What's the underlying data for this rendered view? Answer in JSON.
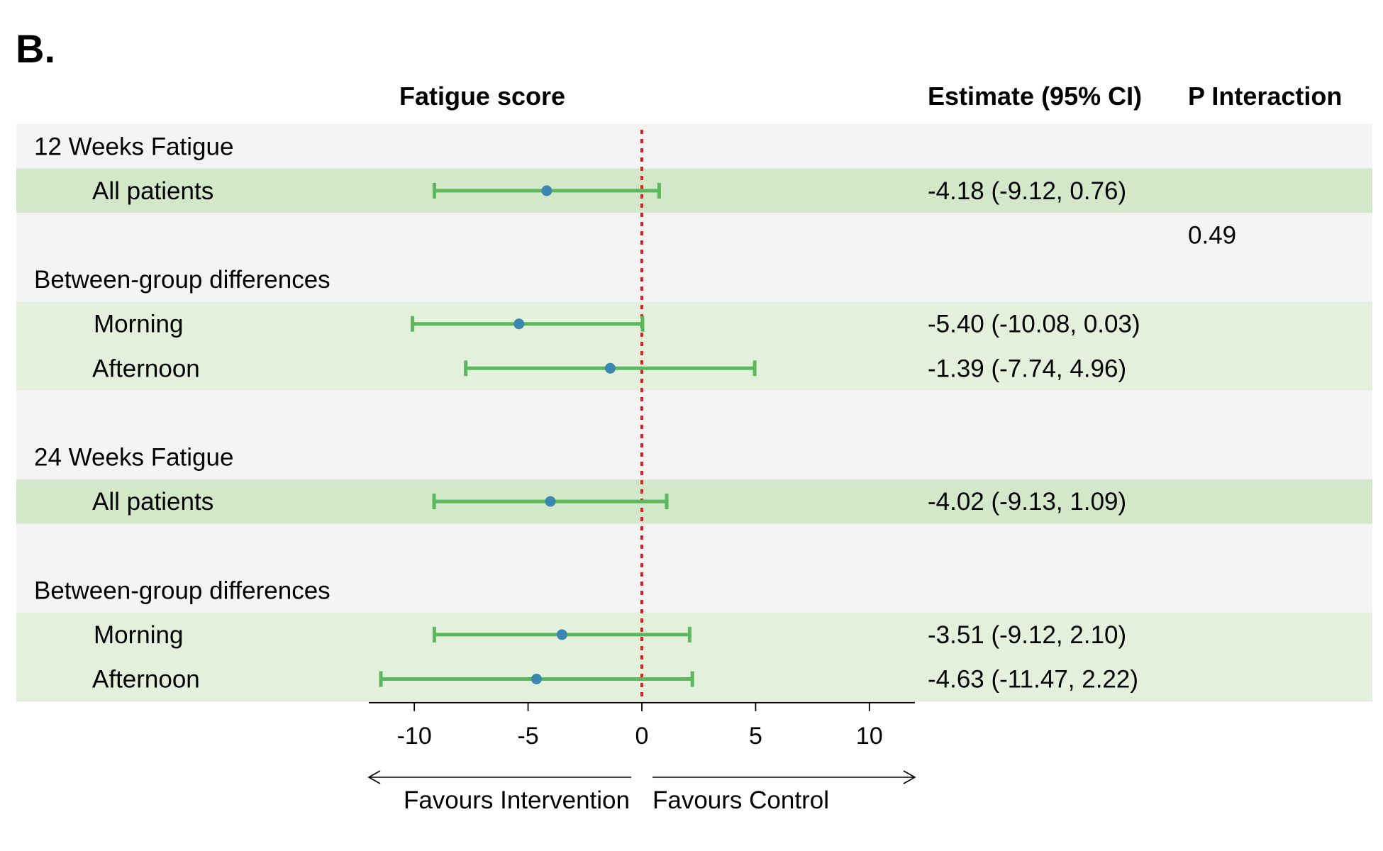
{
  "panel_label": "B.",
  "headers": {
    "plot": "Fatigue score",
    "estimate": "Estimate (95% CI)",
    "p_interaction": "P Interaction"
  },
  "colors": {
    "band_light": "#f4f4f4",
    "band_green": "#d3e7c9",
    "band_green_light": "#e2f0dc",
    "ci_line": "#5cb85c",
    "point": "#3a87b0",
    "reference_line": "#dd2222"
  },
  "favours": {
    "left": "Favours Intervention",
    "right": "Favours Control"
  },
  "chart_data": {
    "type": "forest",
    "xlabel": "",
    "xlim": [
      -12,
      12
    ],
    "xticks": [
      -10,
      -5,
      0,
      5,
      10
    ],
    "reference_line": 0,
    "rows": [
      {
        "label": "12 Weeks Fatigue",
        "kind": "section",
        "band": "light",
        "estimate": null,
        "lower": null,
        "upper": null,
        "ci_text": "",
        "p": ""
      },
      {
        "label": "All patients",
        "kind": "item",
        "band": "green",
        "estimate": -4.18,
        "lower": -9.12,
        "upper": 0.76,
        "ci_text": "-4.18 (-9.12, 0.76)",
        "p": ""
      },
      {
        "label": "",
        "kind": "blank",
        "band": "light",
        "estimate": null,
        "lower": null,
        "upper": null,
        "ci_text": "",
        "p": "0.49"
      },
      {
        "label": "Between-group differences",
        "kind": "section",
        "band": "light",
        "estimate": null,
        "lower": null,
        "upper": null,
        "ci_text": "",
        "p": ""
      },
      {
        "label": "Morning",
        "kind": "item",
        "band": "green_light",
        "estimate": -5.4,
        "lower": -10.08,
        "upper": 0.03,
        "ci_text": "-5.40 (-10.08, 0.03)",
        "p": ""
      },
      {
        "label": "Afternoon",
        "kind": "item",
        "band": "green_light",
        "estimate": -1.39,
        "lower": -7.74,
        "upper": 4.96,
        "ci_text": "-1.39 (-7.74, 4.96)",
        "p": ""
      },
      {
        "label": "",
        "kind": "blank",
        "band": "light",
        "estimate": null,
        "lower": null,
        "upper": null,
        "ci_text": "",
        "p": ""
      },
      {
        "label": "24 Weeks Fatigue",
        "kind": "section",
        "band": "light",
        "estimate": null,
        "lower": null,
        "upper": null,
        "ci_text": "",
        "p": ""
      },
      {
        "label": "All patients",
        "kind": "item",
        "band": "green",
        "estimate": -4.02,
        "lower": -9.13,
        "upper": 1.09,
        "ci_text": "-4.02 (-9.13, 1.09)",
        "p": ""
      },
      {
        "label": "",
        "kind": "blank",
        "band": "light",
        "estimate": null,
        "lower": null,
        "upper": null,
        "ci_text": "",
        "p": ""
      },
      {
        "label": "Between-group differences",
        "kind": "section",
        "band": "light",
        "estimate": null,
        "lower": null,
        "upper": null,
        "ci_text": "",
        "p": ""
      },
      {
        "label": "Morning",
        "kind": "item",
        "band": "green_light",
        "estimate": -3.51,
        "lower": -9.12,
        "upper": 2.1,
        "ci_text": "-3.51 (-9.12, 2.10)",
        "p": ""
      },
      {
        "label": "Afternoon",
        "kind": "item",
        "band": "green_light",
        "estimate": -4.63,
        "lower": -11.47,
        "upper": 2.22,
        "ci_text": "-4.63 (-11.47, 2.22)",
        "p": ""
      }
    ]
  }
}
